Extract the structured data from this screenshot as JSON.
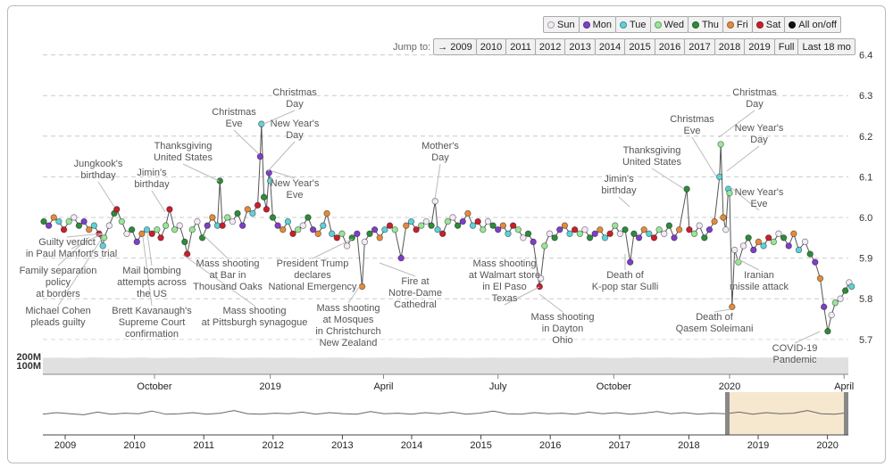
{
  "legend_buttons": [
    {
      "label": "Sun",
      "color": "#f3eaf7"
    },
    {
      "label": "Mon",
      "color": "#7e3fc7"
    },
    {
      "label": "Tue",
      "color": "#5fd0d8"
    },
    {
      "label": "Wed",
      "color": "#98e698"
    },
    {
      "label": "Thu",
      "color": "#2e8b3a"
    },
    {
      "label": "Fri",
      "color": "#e38b3c"
    },
    {
      "label": "Sat",
      "color": "#c9202b"
    },
    {
      "label": "All on/off",
      "color": "#111111"
    }
  ],
  "jump": {
    "label": "Jump to:",
    "buttons": [
      "→ 2009",
      "2010",
      "2011",
      "2012",
      "2013",
      "2014",
      "2015",
      "2016",
      "2017",
      "2018",
      "2019",
      "Full",
      "Last 18 mo"
    ]
  },
  "chart_data": {
    "type": "line",
    "ylim": [
      5.62,
      6.4
    ],
    "y_ticks": [
      "6.4",
      "6.3",
      "6.2",
      "6.1",
      "6.0",
      "5.9",
      "5.8",
      "5.7"
    ],
    "x_ticks": [
      "October",
      "2019",
      "April",
      "July",
      "October",
      "2020",
      "April"
    ],
    "grid": true,
    "weekday_colors": {
      "Sun": "#f3eaf7",
      "Mon": "#7e3fc7",
      "Tue": "#5fd0d8",
      "Wed": "#98e698",
      "Thu": "#2e8b3a",
      "Fri": "#e38b3c",
      "Sat": "#c9202b"
    },
    "points": [
      [
        "2018-07-05",
        5.99
      ],
      [
        "2018-07-09",
        5.98
      ],
      [
        "2018-07-13",
        6.0
      ],
      [
        "2018-07-17",
        5.99
      ],
      [
        "2018-07-21",
        5.97
      ],
      [
        "2018-07-25",
        5.99
      ],
      [
        "2018-07-29",
        6.0
      ],
      [
        "2018-08-02",
        5.98
      ],
      [
        "2018-08-06",
        5.99
      ],
      [
        "2018-08-10",
        5.97
      ],
      [
        "2018-08-14",
        5.98
      ],
      [
        "2018-08-18",
        5.96
      ],
      [
        "2018-08-21",
        5.93
      ],
      [
        "2018-08-22",
        5.95
      ],
      [
        "2018-08-26",
        5.98
      ],
      [
        "2018-08-30",
        6.01
      ],
      [
        "2018-09-01",
        6.02
      ],
      [
        "2018-09-05",
        5.99
      ],
      [
        "2018-09-09",
        5.96
      ],
      [
        "2018-09-13",
        5.97
      ],
      [
        "2018-09-17",
        5.94
      ],
      [
        "2018-09-21",
        5.96
      ],
      [
        "2018-09-25",
        5.97
      ],
      [
        "2018-09-29",
        5.96
      ],
      [
        "2018-10-03",
        5.97
      ],
      [
        "2018-10-06",
        5.95
      ],
      [
        "2018-10-10",
        5.98
      ],
      [
        "2018-10-13",
        6.02
      ],
      [
        "2018-10-17",
        5.97
      ],
      [
        "2018-10-21",
        5.98
      ],
      [
        "2018-10-25",
        5.94
      ],
      [
        "2018-10-27",
        5.91
      ],
      [
        "2018-10-31",
        5.97
      ],
      [
        "2018-11-04",
        5.99
      ],
      [
        "2018-11-08",
        5.95
      ],
      [
        "2018-11-12",
        5.98
      ],
      [
        "2018-11-16",
        6.0
      ],
      [
        "2018-11-20",
        5.98
      ],
      [
        "2018-11-22",
        6.09
      ],
      [
        "2018-11-24",
        5.98
      ],
      [
        "2018-11-28",
        6.0
      ],
      [
        "2018-12-02",
        5.99
      ],
      [
        "2018-12-06",
        6.01
      ],
      [
        "2018-12-10",
        5.98
      ],
      [
        "2018-12-14",
        6.02
      ],
      [
        "2018-12-18",
        6.01
      ],
      [
        "2018-12-22",
        6.03
      ],
      [
        "2018-12-24",
        6.15
      ],
      [
        "2018-12-25",
        6.23
      ],
      [
        "2018-12-27",
        6.05
      ],
      [
        "2018-12-29",
        6.02
      ],
      [
        "2018-12-31",
        6.11
      ],
      [
        "2019-01-01",
        6.09
      ],
      [
        "2019-01-03",
        6.0
      ],
      [
        "2019-01-07",
        5.98
      ],
      [
        "2019-01-11",
        5.97
      ],
      [
        "2019-01-15",
        5.99
      ],
      [
        "2019-01-19",
        5.96
      ],
      [
        "2019-01-23",
        5.97
      ],
      [
        "2019-01-27",
        5.98
      ],
      [
        "2019-01-31",
        6.0
      ],
      [
        "2019-02-04",
        5.97
      ],
      [
        "2019-02-08",
        5.96
      ],
      [
        "2019-02-12",
        5.98
      ],
      [
        "2019-02-15",
        6.01
      ],
      [
        "2019-02-19",
        5.96
      ],
      [
        "2019-02-23",
        5.95
      ],
      [
        "2019-02-27",
        5.96
      ],
      [
        "2019-03-03",
        5.93
      ],
      [
        "2019-03-07",
        5.95
      ],
      [
        "2019-03-11",
        5.96
      ],
      [
        "2019-03-15",
        5.83
      ],
      [
        "2019-03-17",
        5.94
      ],
      [
        "2019-03-21",
        5.96
      ],
      [
        "2019-03-25",
        5.97
      ],
      [
        "2019-03-29",
        5.95
      ],
      [
        "2019-04-02",
        5.97
      ],
      [
        "2019-04-06",
        5.98
      ],
      [
        "2019-04-10",
        5.97
      ],
      [
        "2019-04-15",
        5.9
      ],
      [
        "2019-04-19",
        5.98
      ],
      [
        "2019-04-23",
        5.99
      ],
      [
        "2019-04-27",
        5.97
      ],
      [
        "2019-05-01",
        5.98
      ],
      [
        "2019-05-05",
        5.99
      ],
      [
        "2019-05-09",
        5.98
      ],
      [
        "2019-05-12",
        6.04
      ],
      [
        "2019-05-14",
        5.97
      ],
      [
        "2019-05-18",
        5.96
      ],
      [
        "2019-05-22",
        5.99
      ],
      [
        "2019-05-26",
        6.0
      ],
      [
        "2019-05-30",
        5.98
      ],
      [
        "2019-06-03",
        5.99
      ],
      [
        "2019-06-07",
        6.01
      ],
      [
        "2019-06-11",
        5.98
      ],
      [
        "2019-06-15",
        5.99
      ],
      [
        "2019-06-19",
        5.97
      ],
      [
        "2019-06-23",
        5.99
      ],
      [
        "2019-06-27",
        5.98
      ],
      [
        "2019-07-01",
        5.97
      ],
      [
        "2019-07-05",
        5.98
      ],
      [
        "2019-07-09",
        5.96
      ],
      [
        "2019-07-13",
        5.98
      ],
      [
        "2019-07-17",
        5.97
      ],
      [
        "2019-07-21",
        5.95
      ],
      [
        "2019-07-25",
        5.96
      ],
      [
        "2019-07-29",
        5.94
      ],
      [
        "2019-08-03",
        5.83
      ],
      [
        "2019-08-04",
        5.85
      ],
      [
        "2019-08-07",
        5.93
      ],
      [
        "2019-08-11",
        5.96
      ],
      [
        "2019-08-15",
        5.95
      ],
      [
        "2019-08-19",
        5.97
      ],
      [
        "2019-08-23",
        5.98
      ],
      [
        "2019-08-27",
        5.96
      ],
      [
        "2019-08-31",
        5.97
      ],
      [
        "2019-09-04",
        5.96
      ],
      [
        "2019-09-08",
        5.97
      ],
      [
        "2019-09-12",
        5.95
      ],
      [
        "2019-09-16",
        5.96
      ],
      [
        "2019-09-20",
        5.97
      ],
      [
        "2019-09-24",
        5.95
      ],
      [
        "2019-09-28",
        5.96
      ],
      [
        "2019-10-02",
        5.98
      ],
      [
        "2019-10-06",
        5.96
      ],
      [
        "2019-10-10",
        5.97
      ],
      [
        "2019-10-14",
        5.89
      ],
      [
        "2019-10-17",
        5.96
      ],
      [
        "2019-10-21",
        5.95
      ],
      [
        "2019-10-25",
        5.97
      ],
      [
        "2019-10-29",
        5.96
      ],
      [
        "2019-11-02",
        5.95
      ],
      [
        "2019-11-06",
        5.97
      ],
      [
        "2019-11-10",
        5.96
      ],
      [
        "2019-11-14",
        5.98
      ],
      [
        "2019-11-18",
        5.95
      ],
      [
        "2019-11-22",
        5.97
      ],
      [
        "2019-11-28",
        6.07
      ],
      [
        "2019-11-30",
        5.97
      ],
      [
        "2019-12-04",
        5.96
      ],
      [
        "2019-12-08",
        5.98
      ],
      [
        "2019-12-12",
        5.95
      ],
      [
        "2019-12-16",
        5.97
      ],
      [
        "2019-12-20",
        5.99
      ],
      [
        "2019-12-24",
        6.1
      ],
      [
        "2019-12-25",
        6.18
      ],
      [
        "2019-12-27",
        6.0
      ],
      [
        "2019-12-29",
        5.97
      ],
      [
        "2019-12-31",
        6.07
      ],
      [
        "2020-01-01",
        6.06
      ],
      [
        "2020-01-03",
        5.78
      ],
      [
        "2020-01-05",
        5.92
      ],
      [
        "2020-01-08",
        5.89
      ],
      [
        "2020-01-12",
        5.93
      ],
      [
        "2020-01-16",
        5.95
      ],
      [
        "2020-01-20",
        5.92
      ],
      [
        "2020-01-24",
        5.94
      ],
      [
        "2020-01-28",
        5.93
      ],
      [
        "2020-02-01",
        5.95
      ],
      [
        "2020-02-05",
        5.94
      ],
      [
        "2020-02-09",
        5.96
      ],
      [
        "2020-02-13",
        5.95
      ],
      [
        "2020-02-17",
        5.93
      ],
      [
        "2020-02-21",
        5.96
      ],
      [
        "2020-02-25",
        5.92
      ],
      [
        "2020-03-01",
        5.94
      ],
      [
        "2020-03-05",
        5.91
      ],
      [
        "2020-03-09",
        5.89
      ],
      [
        "2020-03-13",
        5.85
      ],
      [
        "2020-03-16",
        5.78
      ],
      [
        "2020-03-19",
        5.72
      ],
      [
        "2020-03-22",
        5.76
      ],
      [
        "2020-03-25",
        5.79
      ],
      [
        "2020-03-29",
        5.8
      ],
      [
        "2020-04-02",
        5.82
      ],
      [
        "2020-04-05",
        5.84
      ],
      [
        "2020-04-07",
        5.83
      ]
    ],
    "volume": {
      "y_ticks": [
        "200M",
        "100M"
      ],
      "ylim": [
        0,
        200
      ],
      "values": [
        185,
        188,
        182,
        190,
        186,
        184,
        189,
        183,
        187,
        185,
        191,
        186,
        184,
        188,
        185,
        187,
        183,
        186,
        189,
        184,
        186,
        188,
        185,
        183,
        187,
        186,
        184,
        188,
        186,
        185,
        187,
        184,
        186,
        189,
        185,
        183,
        187,
        186,
        188,
        185,
        184,
        187,
        190,
        186,
        188,
        192,
        189,
        191,
        187,
        190
      ]
    },
    "navigator": {
      "x_ticks": [
        "2009",
        "2010",
        "2011",
        "2012",
        "2013",
        "2014",
        "2015",
        "2016",
        "2017",
        "2018",
        "2019",
        "2020"
      ],
      "selection": [
        "2018-07",
        "2020-04"
      ],
      "values": [
        0.2,
        0.5,
        0.3,
        0.1,
        0.6,
        0.2,
        0.4,
        0.3,
        0.8,
        0.2,
        0.3,
        0.5,
        0.2,
        0.4,
        0.9,
        0.3,
        0.2,
        0.4,
        0.3,
        0.6,
        0.2,
        0.5,
        0.3,
        0.2,
        0.7,
        0.3,
        0.4,
        0.2,
        0.5,
        0.3,
        0.6,
        0.2,
        0.4,
        0.8,
        0.3,
        0.2,
        0.5,
        0.3,
        0.4,
        0.2,
        0.6,
        0.3,
        0.5,
        0.2,
        0.4,
        0.7,
        0.3,
        0.5,
        0.2,
        0.4,
        0.3,
        0.6,
        0.2,
        0.5,
        0.3,
        0.4,
        0.9,
        0.3,
        0.2,
        0.5
      ]
    }
  },
  "annotations": [
    "Guilty verdict",
    "in Paul Manfort's trial",
    "Family separation\npolicy\nat borders",
    "Michael Cohen\npleads guilty",
    "Mail bombing\nattempts across\nthe US",
    "Brett Kavanaugh's\nSupreme Court\nconfirmation",
    "Mass shooting\nat Pittsburgh synagogue",
    "Mass shooting\nat Bar in\nThousand Oaks",
    "President Trump\ndeclares\nNational Emergency",
    "Jungkook's\nbirthday",
    "Jimin's\nbirthday",
    "Thanksgiving\nUnited States",
    "Christmas\nEve",
    "Christmas\nDay",
    "New Year's\nDay",
    "New Year's\nEve",
    "Mass shooting\nat Mosques\nin Christchurch\nNew Zealand",
    "Fire at\nNotre-Dame\nCathedral",
    "Mother's\nDay",
    "Mass shooting\nat Walmart store\nin El Paso\nTexas",
    "Mass shooting\nin Dayton\nOhio",
    "Death of\nK-pop star Sulli",
    "Jimin's\nbirthday",
    "Thanksgiving\nUnited States",
    "Christmas\nEve",
    "Christmas\nDay",
    "New Year's\nDay",
    "New Year's\nEve",
    "Iranian\nmissile attack",
    "Death of\nQasem Soleimani",
    "COVID-19\nPandemic"
  ]
}
